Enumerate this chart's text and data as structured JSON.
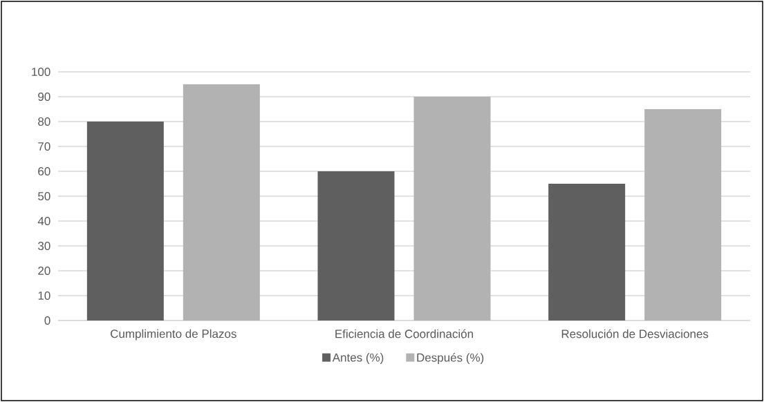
{
  "chart_data": {
    "type": "bar",
    "categories": [
      "Cumplimiento de Plazos",
      "Eficiencia de Coordinación",
      "Resolución de Desviaciones"
    ],
    "series": [
      {
        "name": "Antes (%)",
        "color": "#5f5f5f",
        "values": [
          80,
          60,
          55
        ]
      },
      {
        "name": "Después (%)",
        "color": "#b2b2b2",
        "values": [
          95,
          90,
          85
        ]
      }
    ],
    "ylim": [
      0,
      100
    ],
    "yticks": [
      0,
      10,
      20,
      30,
      40,
      50,
      60,
      70,
      80,
      90,
      100
    ],
    "grid": "y",
    "legend": "bottom"
  }
}
